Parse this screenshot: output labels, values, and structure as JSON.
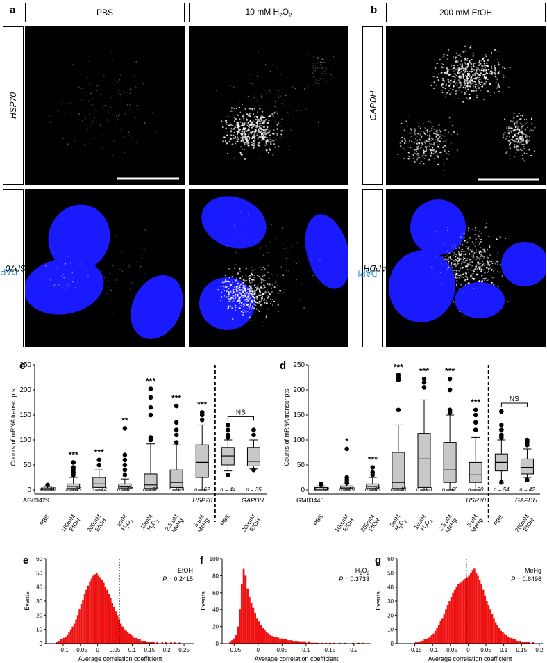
{
  "panel_labels": {
    "a": "a",
    "b": "b",
    "c": "c",
    "d": "d",
    "e": "e",
    "f": "f",
    "g": "g"
  },
  "micrographs": {
    "col_headers": {
      "pbs": "PBS",
      "h2o2_prefix": "10 mM H",
      "h2o2_sub": "2",
      "h2o2_mid": "O",
      "h2o2_sub2": "2",
      "etoh": "200 mM EtOH"
    },
    "row_labels": {
      "hsp70": "HSP70",
      "dapi": "DAPI",
      "gapdh": "GAPDH"
    },
    "colors": {
      "nucleus": "#1a1aff",
      "background": "#000000",
      "spot": "#ffffff"
    }
  },
  "chart_data": [
    {
      "type": "box",
      "panel": "c",
      "cell_line": "AG09429",
      "ylabel": "Counts of mRNA transcripts",
      "ylim": [
        0,
        250
      ],
      "yticks": [
        0,
        50,
        100,
        150,
        200,
        250
      ],
      "gene_labels": {
        "hsp70": "HSP70",
        "gapdh": "GAPDH"
      },
      "categories": [
        {
          "label": [
            "PBS"
          ],
          "n": "n = 48",
          "sig": "",
          "q1": 0,
          "median": 2,
          "q3": 4,
          "wlo": 0,
          "whi": 7,
          "outliers": [
            10
          ]
        },
        {
          "label": [
            "100mM",
            "EtOH"
          ],
          "n": "n = 53",
          "sig": "***",
          "q1": 3,
          "median": 7,
          "q3": 12,
          "wlo": 0,
          "whi": 25,
          "outliers": [
            30,
            35,
            40,
            45,
            55
          ]
        },
        {
          "label": [
            "200mM",
            "EtOH"
          ],
          "n": "n = 44",
          "sig": "***",
          "q1": 5,
          "median": 12,
          "q3": 25,
          "wlo": 0,
          "whi": 40,
          "outliers": [
            50,
            60
          ]
        },
        {
          "label": [
            "5mM",
            "H2O2"
          ],
          "n": "n = 67",
          "sig": "**",
          "q1": 3,
          "median": 6,
          "q3": 12,
          "wlo": 0,
          "whi": 22,
          "outliers": [
            30,
            40,
            50,
            60,
            70,
            123
          ]
        },
        {
          "label": [
            "10mM",
            "H2O2"
          ],
          "n": "n = 58",
          "sig": "***",
          "q1": 3,
          "median": 10,
          "q3": 32,
          "wlo": 0,
          "whi": 92,
          "outliers": [
            100,
            105,
            150,
            165,
            185,
            202
          ]
        },
        {
          "label": [
            "2.5 µM",
            "MeHg"
          ],
          "n": "n = 69",
          "sig": "***",
          "q1": 5,
          "median": 15,
          "q3": 40,
          "wlo": 0,
          "whi": 90,
          "outliers": [
            95,
            110,
            120,
            135,
            168
          ]
        },
        {
          "label": [
            "5 µM",
            "MeHg"
          ],
          "n": "n = 62",
          "sig": "***",
          "q1": 25,
          "median": 55,
          "q3": 90,
          "wlo": 0,
          "whi": 130,
          "outliers": [
            140,
            150,
            155
          ]
        },
        {
          "label": [
            "PBS"
          ],
          "n": "n = 44",
          "sig": "",
          "q1": 50,
          "median": 68,
          "q3": 85,
          "wlo": 38,
          "whi": 100,
          "outliers": [
            30,
            105,
            110,
            120,
            130
          ]
        },
        {
          "label": [
            "200mM",
            "EtOH"
          ],
          "n": "n = 35",
          "sig": "",
          "q1": 48,
          "median": 57,
          "q3": 85,
          "wlo": 42,
          "whi": 100,
          "outliers": [
            40,
            110,
            120
          ]
        }
      ],
      "ns_label": "NS",
      "divider_after": 7
    },
    {
      "type": "box",
      "panel": "d",
      "cell_line": "GM03440",
      "ylabel": "Counts of mRNA transcripts",
      "ylim": [
        0,
        250
      ],
      "yticks": [
        0,
        50,
        100,
        150,
        200,
        250
      ],
      "gene_labels": {
        "hsp70": "HSP70",
        "gapdh": "GAPDH"
      },
      "categories": [
        {
          "label": [
            "PBS"
          ],
          "n": "n = 53",
          "sig": "",
          "q1": 0,
          "median": 2,
          "q3": 5,
          "wlo": 0,
          "whi": 8,
          "outliers": [
            10,
            12
          ]
        },
        {
          "label": [
            "100mM",
            "EtOH"
          ],
          "n": "n = 69",
          "sig": "*",
          "q1": 2,
          "median": 4,
          "q3": 8,
          "wlo": 0,
          "whi": 12,
          "outliers": [
            14,
            16,
            20,
            25,
            82
          ]
        },
        {
          "label": [
            "200mM",
            "EtOH"
          ],
          "n": "n = 63",
          "sig": "***",
          "q1": 3,
          "median": 7,
          "q3": 12,
          "wlo": 0,
          "whi": 25,
          "outliers": [
            30,
            35,
            45
          ]
        },
        {
          "label": [
            "5mM",
            "H2O2"
          ],
          "n": "n = 48",
          "sig": "***",
          "q1": 3,
          "median": 15,
          "q3": 75,
          "wlo": 0,
          "whi": 130,
          "outliers": [
            160,
            220,
            225,
            230
          ]
        },
        {
          "label": [
            "10mM",
            "H2O2"
          ],
          "n": "n = 53",
          "sig": "***",
          "q1": 5,
          "median": 62,
          "q3": 113,
          "wlo": 0,
          "whi": 180,
          "outliers": [
            205,
            215,
            222
          ]
        },
        {
          "label": [
            "2.5 µM",
            "MeHg"
          ],
          "n": "n = 66",
          "sig": "***",
          "q1": 15,
          "median": 40,
          "q3": 95,
          "wlo": 0,
          "whi": 150,
          "outliers": [
            155,
            160,
            200,
            222
          ]
        },
        {
          "label": [
            "5 µM",
            "MeHg"
          ],
          "n": "n = 60",
          "sig": "***",
          "q1": 15,
          "median": 30,
          "q3": 55,
          "wlo": 0,
          "whi": 105,
          "outliers": [
            120,
            135,
            150,
            160
          ]
        },
        {
          "label": [
            "PBS"
          ],
          "n": "n = 54",
          "sig": "",
          "q1": 38,
          "median": 55,
          "q3": 72,
          "wlo": 20,
          "whi": 100,
          "outliers": [
            15,
            105,
            110,
            120,
            130,
            157
          ]
        },
        {
          "label": [
            "200mM",
            "EtOH"
          ],
          "n": "n = 42",
          "sig": "",
          "q1": 32,
          "median": 45,
          "q3": 62,
          "wlo": 25,
          "whi": 82,
          "outliers": [
            20,
            90,
            95,
            100
          ]
        }
      ],
      "ns_label": "NS",
      "divider_after": 7
    },
    {
      "type": "histogram",
      "panel": "e",
      "title": "EtOH",
      "p_label": "P = 0.2415",
      "ylabel": "Events",
      "xlabel": "Average correlation coefficient",
      "xlim": [
        -0.15,
        0.28
      ],
      "ylim": [
        0,
        60
      ],
      "xticks": [
        -0.1,
        -0.05,
        0,
        0.05,
        0.1,
        0.15,
        0.2,
        0.25
      ],
      "xtick_labels": [
        "–0.1",
        "–0.05",
        "0",
        "0.05",
        "0.1",
        "0.15",
        "0.2",
        "0.25"
      ],
      "yticks": [
        0,
        10,
        20,
        30,
        40,
        50,
        60
      ],
      "dashed_x": 0.063,
      "bin_start": -0.12,
      "bin_width": 0.005,
      "counts": [
        1,
        2,
        3,
        3,
        4,
        5,
        6,
        8,
        10,
        12,
        14,
        17,
        20,
        24,
        28,
        31,
        35,
        38,
        41,
        44,
        46,
        48,
        49,
        50,
        48,
        47,
        45,
        43,
        40,
        38,
        35,
        32,
        29,
        26,
        23,
        20,
        17,
        14,
        12,
        10,
        9,
        8,
        7,
        6,
        5,
        4,
        4,
        3,
        3,
        2,
        2,
        2,
        1,
        1,
        1,
        1,
        1,
        0,
        1,
        0,
        0,
        1,
        0,
        1,
        0,
        0,
        1,
        0,
        1,
        0,
        0,
        1
      ]
    },
    {
      "type": "histogram",
      "panel": "f",
      "title": "H2O2",
      "p_label": "P = 0.3733",
      "ylabel": "Events",
      "xlabel": "Average correlation coefficient",
      "xlim": [
        -0.075,
        0.235
      ],
      "ylim": [
        0,
        100
      ],
      "xticks": [
        -0.05,
        0,
        0.05,
        0.1,
        0.15,
        0.2
      ],
      "xtick_labels": [
        "–0.05",
        "0",
        "0.05",
        "0.1",
        "0.15",
        "0.2"
      ],
      "yticks": [
        0,
        20,
        40,
        60,
        80,
        100
      ],
      "dashed_x": -0.025,
      "bin_start": -0.06,
      "bin_width": 0.004,
      "counts": [
        2,
        4,
        6,
        10,
        20,
        40,
        70,
        88,
        80,
        65,
        55,
        48,
        42,
        36,
        30,
        26,
        22,
        18,
        16,
        14,
        12,
        10,
        9,
        8,
        8,
        7,
        6,
        6,
        5,
        5,
        4,
        4,
        4,
        3,
        3,
        3,
        2,
        2,
        2,
        2,
        1,
        2,
        1,
        1,
        1,
        1,
        1,
        0,
        1,
        0,
        1,
        0,
        1,
        0,
        1,
        0,
        0,
        1,
        0,
        0,
        1,
        0,
        0,
        0,
        1,
        0,
        0,
        1,
        0,
        1
      ]
    },
    {
      "type": "histogram",
      "panel": "g",
      "title": "MeHg",
      "p_label": "P = 0.8498",
      "ylabel": "Events",
      "xlabel": "Average correlation coefficient",
      "xlim": [
        -0.2,
        0.21
      ],
      "ylim": [
        0,
        60
      ],
      "xticks": [
        -0.15,
        -0.1,
        -0.05,
        0,
        0.05,
        0.1,
        0.15,
        0.2
      ],
      "xtick_labels": [
        "–0.15",
        "–0.1",
        "–0.05",
        "0",
        "0.05",
        "0.1",
        "0.15",
        "0.2"
      ],
      "yticks": [
        0,
        10,
        20,
        30,
        40,
        50,
        60
      ],
      "dashed_x": -0.005,
      "bin_start": -0.15,
      "bin_width": 0.005,
      "counts": [
        1,
        1,
        1,
        2,
        2,
        3,
        3,
        4,
        5,
        6,
        7,
        9,
        11,
        13,
        16,
        18,
        21,
        24,
        27,
        30,
        33,
        36,
        38,
        40,
        42,
        43,
        44,
        45,
        46,
        47,
        48,
        50,
        52,
        53,
        50,
        48,
        45,
        42,
        38,
        34,
        30,
        27,
        24,
        21,
        18,
        15,
        13,
        11,
        9,
        8,
        7,
        6,
        5,
        4,
        4,
        3,
        3,
        2,
        2,
        2,
        1,
        1,
        1,
        1,
        1,
        0,
        1
      ]
    }
  ]
}
